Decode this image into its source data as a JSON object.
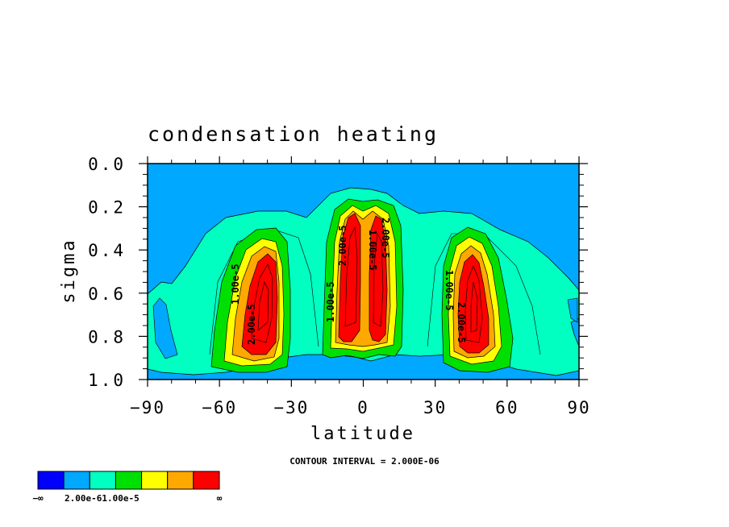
{
  "chart_data": {
    "type": "heatmap",
    "title": "condensation heating",
    "xlabel": "latitude",
    "ylabel": "sigma",
    "xlim": [
      -90,
      90
    ],
    "ylim": [
      1.0,
      0.0
    ],
    "x_ticks": [
      -90,
      -60,
      -30,
      0,
      30,
      60,
      90
    ],
    "x_tick_labels": [
      "−90",
      "−60",
      "−30",
      "0",
      "30",
      "60",
      "90"
    ],
    "y_ticks": [
      0.0,
      0.2,
      0.4,
      0.6,
      0.8,
      1.0
    ],
    "y_tick_labels": [
      "0.0",
      "0.2",
      "0.4",
      "0.6",
      "0.8",
      "1.0"
    ],
    "contour_interval_text": "CONTOUR INTERVAL = 2.000E-06",
    "colorbar": {
      "colors": [
        "#0000ff",
        "#00a8ff",
        "#00ffc0",
        "#00e000",
        "#ffff00",
        "#ffa800",
        "#ff0000"
      ],
      "labels": [
        "−∞",
        "2.00e-6",
        "1.00e-5",
        "∞"
      ],
      "label_text": "2.00e-61.00e-5"
    },
    "contour_labels": [
      "1.00e-5",
      "2.00e-5",
      "1.00e-5",
      "2.00e-5",
      "2.00e-5",
      "1.00e-5",
      "1.00e-5",
      "2.00e-5"
    ],
    "field_centers": [
      {
        "name": "southern-maximum",
        "lat": -44,
        "sigma": 0.62
      },
      {
        "name": "equatorial-south-maximum",
        "lat": -6,
        "sigma": 0.48
      },
      {
        "name": "equatorial-north-maximum",
        "lat": 8,
        "sigma": 0.46
      },
      {
        "name": "northern-maximum",
        "lat": 46,
        "sigma": 0.62
      }
    ]
  }
}
